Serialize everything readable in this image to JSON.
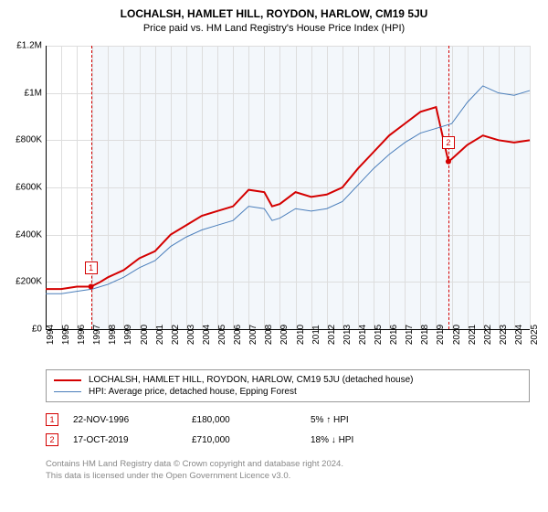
{
  "title": "LOCHALSH, HAMLET HILL, ROYDON, HARLOW, CM19 5JU",
  "subtitle": "Price paid vs. HM Land Registry's House Price Index (HPI)",
  "chart": {
    "type": "line",
    "background_color": "#ffffff",
    "plot_bg_color": "#f3f7fb",
    "grid_color": "#dddddd",
    "axis_color": "#000000",
    "ylim": [
      0,
      1200000
    ],
    "yticks": [
      0,
      200000,
      400000,
      600000,
      800000,
      1000000,
      1200000
    ],
    "ytick_labels": [
      "£0",
      "£200K",
      "£400K",
      "£600K",
      "£800K",
      "£1M",
      "£1.2M"
    ],
    "xlim": [
      1994,
      2025
    ],
    "xticks": [
      1994,
      1995,
      1996,
      1997,
      1998,
      1999,
      2000,
      2001,
      2002,
      2003,
      2004,
      2005,
      2006,
      2007,
      2008,
      2009,
      2010,
      2011,
      2012,
      2013,
      2014,
      2015,
      2016,
      2017,
      2018,
      2019,
      2020,
      2021,
      2022,
      2023,
      2024,
      2025
    ],
    "series": [
      {
        "name": "LOCHALSH, HAMLET HILL, ROYDON, HARLOW, CM19 5JU (detached house)",
        "color": "#d40000",
        "line_width": 2,
        "data": [
          [
            1994,
            170000
          ],
          [
            1995,
            170000
          ],
          [
            1996,
            180000
          ],
          [
            1996.9,
            180000
          ],
          [
            1997.5,
            200000
          ],
          [
            1998,
            220000
          ],
          [
            1999,
            250000
          ],
          [
            2000,
            300000
          ],
          [
            2001,
            330000
          ],
          [
            2002,
            400000
          ],
          [
            2003,
            440000
          ],
          [
            2004,
            480000
          ],
          [
            2005,
            500000
          ],
          [
            2006,
            520000
          ],
          [
            2007,
            590000
          ],
          [
            2008,
            580000
          ],
          [
            2008.5,
            520000
          ],
          [
            2009,
            530000
          ],
          [
            2010,
            580000
          ],
          [
            2011,
            560000
          ],
          [
            2012,
            570000
          ],
          [
            2013,
            600000
          ],
          [
            2014,
            680000
          ],
          [
            2015,
            750000
          ],
          [
            2016,
            820000
          ],
          [
            2017,
            870000
          ],
          [
            2018,
            920000
          ],
          [
            2019,
            940000
          ],
          [
            2019.79,
            710000
          ],
          [
            2020,
            720000
          ],
          [
            2021,
            780000
          ],
          [
            2022,
            820000
          ],
          [
            2023,
            800000
          ],
          [
            2024,
            790000
          ],
          [
            2025,
            800000
          ]
        ]
      },
      {
        "name": "HPI: Average price, detached house, Epping Forest",
        "color": "#4a7ebb",
        "line_width": 1,
        "data": [
          [
            1994,
            150000
          ],
          [
            1995,
            150000
          ],
          [
            1996,
            160000
          ],
          [
            1997,
            170000
          ],
          [
            1998,
            190000
          ],
          [
            1999,
            220000
          ],
          [
            2000,
            260000
          ],
          [
            2001,
            290000
          ],
          [
            2002,
            350000
          ],
          [
            2003,
            390000
          ],
          [
            2004,
            420000
          ],
          [
            2005,
            440000
          ],
          [
            2006,
            460000
          ],
          [
            2007,
            520000
          ],
          [
            2008,
            510000
          ],
          [
            2008.5,
            460000
          ],
          [
            2009,
            470000
          ],
          [
            2010,
            510000
          ],
          [
            2011,
            500000
          ],
          [
            2012,
            510000
          ],
          [
            2013,
            540000
          ],
          [
            2014,
            610000
          ],
          [
            2015,
            680000
          ],
          [
            2016,
            740000
          ],
          [
            2017,
            790000
          ],
          [
            2018,
            830000
          ],
          [
            2019,
            850000
          ],
          [
            2020,
            870000
          ],
          [
            2021,
            960000
          ],
          [
            2022,
            1030000
          ],
          [
            2023,
            1000000
          ],
          [
            2024,
            990000
          ],
          [
            2025,
            1010000
          ]
        ]
      }
    ],
    "markers": [
      {
        "label": "1",
        "x": 1996.9,
        "y": 180000,
        "color": "#d40000",
        "dash_color": "#d40000"
      },
      {
        "label": "2",
        "x": 2019.79,
        "y": 710000,
        "color": "#d40000",
        "dash_color": "#d40000"
      }
    ]
  },
  "legend": {
    "items": [
      {
        "label": "LOCHALSH, HAMLET HILL, ROYDON, HARLOW, CM19 5JU (detached house)",
        "color": "#d40000",
        "width": 2
      },
      {
        "label": "HPI: Average price, detached house, Epping Forest",
        "color": "#4a7ebb",
        "width": 1
      }
    ]
  },
  "sales": [
    {
      "marker": "1",
      "color": "#d40000",
      "date": "22-NOV-1996",
      "price": "£180,000",
      "pct": "5% ↑ HPI"
    },
    {
      "marker": "2",
      "color": "#d40000",
      "date": "17-OCT-2019",
      "price": "£710,000",
      "pct": "18% ↓ HPI"
    }
  ],
  "footer": {
    "line1": "Contains HM Land Registry data © Crown copyright and database right 2024.",
    "line2": "This data is licensed under the Open Government Licence v3.0."
  }
}
